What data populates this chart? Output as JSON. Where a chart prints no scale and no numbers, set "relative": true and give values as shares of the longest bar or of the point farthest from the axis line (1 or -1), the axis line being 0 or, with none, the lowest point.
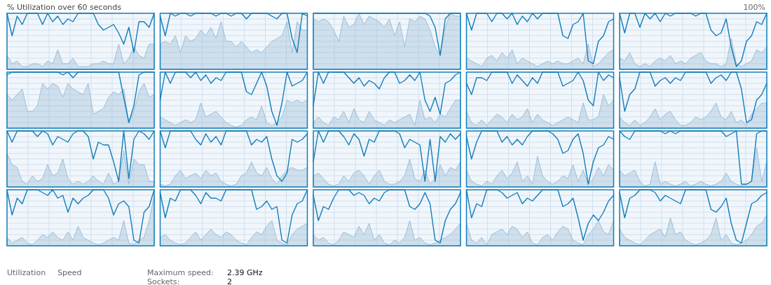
{
  "chart_data": [
    {
      "type": "line",
      "title": "% Utilization over 60 seconds",
      "annotations": [
        "100%",
        "Utilization",
        "Speed",
        "Maximum speed:",
        "2.39 GHz",
        "Sockets:",
        "2"
      ],
      "relative": true,
      "grid": true,
      "categories": [
        null,
        null,
        null,
        null,
        null,
        null,
        null,
        null,
        null,
        null,
        null,
        null,
        null,
        null,
        null,
        null,
        null,
        null,
        null,
        null,
        null,
        null,
        null,
        null,
        null,
        null,
        null,
        null,
        null,
        null
      ],
      "series": [
        {
          "color": "#117dbb",
          "values": [
            1,
            0.6,
            0.95,
            0.8,
            1,
            1,
            1,
            0.8,
            1,
            0.85,
            0.95,
            0.8,
            0.9,
            0.85,
            1,
            1,
            1,
            1,
            0.8,
            0.7,
            0.75,
            0.8,
            0.65,
            0.45,
            0.75,
            0.3,
            0.85,
            0.85,
            0.75,
            1
          ]
        },
        {
          "type": "area",
          "color": "#8fb4d1",
          "values": [
            0.25,
            0.1,
            0.15,
            0.05,
            0.05,
            0.1,
            0.1,
            0.05,
            0.15,
            0.1,
            0.35,
            0.1,
            0.1,
            0.2,
            0.05,
            0.05,
            0.05,
            0.1,
            0.1,
            0.15,
            0.1,
            0.1,
            0.45,
            0.1,
            0.2,
            0.4,
            0.25,
            0.2,
            0.45,
            0.45
          ]
        }
      ]
    },
    {
      "type": "line",
      "relative": true,
      "grid": true,
      "categories": [
        null,
        null,
        null,
        null,
        null,
        null,
        null,
        null,
        null,
        null,
        null,
        null,
        null,
        null,
        null,
        null,
        null,
        null,
        null,
        null,
        null,
        null,
        null,
        null,
        null,
        null,
        null,
        null,
        null,
        null
      ],
      "series": [
        {
          "color": "#117dbb",
          "values": [
            0.95,
            0.6,
            1,
            0.95,
            1,
            1,
            0.95,
            1,
            1,
            1,
            1,
            0.95,
            1,
            1,
            0.95,
            1,
            1,
            0.9,
            1,
            1,
            1,
            1,
            0.95,
            0.9,
            1,
            1,
            0.55,
            0.3,
            1,
            0.95
          ]
        },
        {
          "type": "area",
          "color": "#8fb4d1",
          "values": [
            0.45,
            0.5,
            0.45,
            0.6,
            0.3,
            0.6,
            0.5,
            0.55,
            0.7,
            0.6,
            0.75,
            0.55,
            0.85,
            0.5,
            0.5,
            0.4,
            0.5,
            0.4,
            0.3,
            0.35,
            0.3,
            0.4,
            0.5,
            0.55,
            0.6,
            0.85,
            0.3,
            0.85,
            0.7,
            0.7
          ]
        }
      ]
    },
    {
      "type": "line",
      "relative": true,
      "grid": true,
      "categories": [
        null,
        null,
        null,
        null,
        null,
        null,
        null,
        null,
        null,
        null,
        null,
        null,
        null,
        null,
        null,
        null,
        null,
        null,
        null,
        null,
        null,
        null,
        null,
        null,
        null,
        null,
        null,
        null,
        null,
        null
      ],
      "series": [
        {
          "color": "#117dbb",
          "values": [
            1,
            1,
            1,
            1,
            1,
            1,
            1,
            1,
            1,
            1,
            1,
            1,
            1,
            1,
            1,
            1,
            1,
            1,
            1,
            1,
            1,
            1,
            1,
            0.95,
            0.75,
            0.25,
            0.9,
            1,
            1,
            1
          ]
        },
        {
          "type": "area",
          "color": "#8fb4d1",
          "values": [
            0.9,
            0.85,
            0.9,
            0.85,
            0.7,
            0.5,
            0.95,
            0.75,
            0.8,
            1,
            0.8,
            0.95,
            0.9,
            0.85,
            0.75,
            0.9,
            0.6,
            0.85,
            0.4,
            0.9,
            0.85,
            0.95,
            0.9,
            0.7,
            0.4,
            0.25,
            0.75,
            1,
            0.95,
            0.95
          ]
        }
      ]
    },
    {
      "type": "line",
      "relative": true,
      "grid": true,
      "categories": [
        null,
        null,
        null,
        null,
        null,
        null,
        null,
        null,
        null,
        null,
        null,
        null,
        null,
        null,
        null,
        null,
        null,
        null,
        null,
        null,
        null,
        null,
        null,
        null,
        null,
        null,
        null,
        null,
        null,
        null
      ],
      "series": [
        {
          "color": "#117dbb",
          "values": [
            1,
            0.7,
            1,
            1,
            1,
            0.85,
            1,
            1,
            0.9,
            1,
            0.8,
            0.95,
            0.85,
            1,
            0.9,
            1,
            1,
            1,
            1,
            0.6,
            0.55,
            0.8,
            0.85,
            1,
            0.15,
            0.1,
            0.5,
            0.6,
            0.85,
            0.9
          ]
        },
        {
          "type": "area",
          "color": "#8fb4d1",
          "values": [
            0.2,
            0.15,
            0.1,
            0.05,
            0.2,
            0.25,
            0.15,
            0.3,
            0.2,
            0.35,
            0.1,
            0.2,
            0.15,
            0.1,
            0.05,
            0.1,
            0.15,
            0.1,
            0.15,
            0.1,
            0.1,
            0.15,
            0.2,
            0.1,
            0.45,
            0.05,
            0.1,
            0.2,
            0.3,
            0.35
          ]
        }
      ]
    },
    {
      "type": "line",
      "relative": true,
      "grid": true,
      "categories": [
        null,
        null,
        null,
        null,
        null,
        null,
        null,
        null,
        null,
        null,
        null,
        null,
        null,
        null,
        null,
        null,
        null,
        null,
        null,
        null,
        null,
        null,
        null,
        null,
        null,
        null,
        null,
        null,
        null,
        null
      ],
      "series": [
        {
          "color": "#117dbb",
          "values": [
            1,
            0.65,
            1,
            1,
            0.75,
            1,
            0.9,
            1,
            0.85,
            1,
            0.95,
            1,
            1,
            1,
            1,
            0.95,
            1,
            1,
            0.7,
            0.6,
            0.65,
            0.9,
            0.4,
            0.05,
            0.15,
            0.5,
            0.6,
            0.85,
            0.8,
            1
          ]
        },
        {
          "type": "area",
          "color": "#8fb4d1",
          "values": [
            0.2,
            0.15,
            0.3,
            0.1,
            0.05,
            0.1,
            0.05,
            0.15,
            0.2,
            0.15,
            0.25,
            0.1,
            0.15,
            0.1,
            0.2,
            0.25,
            0.3,
            0.15,
            0.1,
            0.1,
            0.05,
            0.1,
            0.55,
            0.1,
            0.05,
            0.1,
            0.15,
            0.35,
            0.3,
            0.4
          ]
        }
      ]
    },
    {
      "type": "line",
      "relative": true,
      "grid": true,
      "categories": [
        null,
        null,
        null,
        null,
        null,
        null,
        null,
        null,
        null,
        null,
        null,
        null,
        null,
        null,
        null,
        null,
        null,
        null,
        null,
        null,
        null,
        null,
        null,
        null,
        null,
        null,
        null,
        null,
        null,
        null
      ],
      "series": [
        {
          "color": "#117dbb",
          "values": [
            0.95,
            1,
            1,
            1,
            1,
            1,
            1,
            1,
            1,
            1,
            1,
            0.95,
            1,
            0.9,
            1,
            1,
            1,
            1,
            1,
            1,
            1,
            1,
            1,
            0.55,
            0.1,
            0.4,
            0.95,
            1,
            1,
            1
          ]
        },
        {
          "type": "area",
          "color": "#8fb4d1",
          "values": [
            0.6,
            0.5,
            0.6,
            0.7,
            0.3,
            0.3,
            0.4,
            0.8,
            0.7,
            0.8,
            0.75,
            0.55,
            0.8,
            0.7,
            0.65,
            0.6,
            0.8,
            0.25,
            0.3,
            0.35,
            0.55,
            0.65,
            0.6,
            0.7,
            0.1,
            0.3,
            0.65,
            0.8,
            0.55,
            0.6
          ]
        }
      ]
    },
    {
      "type": "line",
      "relative": true,
      "grid": true,
      "categories": [
        null,
        null,
        null,
        null,
        null,
        null,
        null,
        null,
        null,
        null,
        null,
        null,
        null,
        null,
        null,
        null,
        null,
        null,
        null,
        null,
        null,
        null,
        null,
        null,
        null,
        null,
        null,
        null,
        null,
        null
      ],
      "series": [
        {
          "color": "#117dbb",
          "values": [
            0.5,
            1,
            0.8,
            1,
            1,
            1,
            0.9,
            1,
            0.85,
            0.95,
            0.8,
            0.9,
            0.85,
            1,
            1,
            1,
            1,
            0.65,
            0.6,
            0.8,
            1,
            0.75,
            0.3,
            0.05,
            0.45,
            1,
            0.75,
            0.8,
            0.85,
            1
          ]
        },
        {
          "type": "area",
          "color": "#8fb4d1",
          "values": [
            0.2,
            0.15,
            0.1,
            0.05,
            0.1,
            0.15,
            0.1,
            0.15,
            0.45,
            0.2,
            0.25,
            0.3,
            0.2,
            0.1,
            0.05,
            0.02,
            0.05,
            0.15,
            0.2,
            0.15,
            0.4,
            0.1,
            0.05,
            0.1,
            0.2,
            0.5,
            0.45,
            0.5,
            0.45,
            0.5
          ]
        }
      ]
    },
    {
      "type": "line",
      "relative": true,
      "grid": true,
      "categories": [
        null,
        null,
        null,
        null,
        null,
        null,
        null,
        null,
        null,
        null,
        null,
        null,
        null,
        null,
        null,
        null,
        null,
        null,
        null,
        null,
        null,
        null,
        null,
        null,
        null,
        null,
        null,
        null,
        null,
        null
      ],
      "series": [
        {
          "color": "#117dbb",
          "values": [
            0.4,
            1,
            0.8,
            1,
            1,
            1,
            1,
            0.9,
            0.8,
            0.9,
            0.75,
            0.85,
            0.8,
            0.7,
            0.9,
            1,
            1,
            0.8,
            0.85,
            0.95,
            0.85,
            1,
            0.5,
            0.3,
            0.55,
            0.25,
            0.8,
            0.85,
            0.95,
            1
          ]
        },
        {
          "type": "area",
          "color": "#8fb4d1",
          "values": [
            0.1,
            0.2,
            0.1,
            0.05,
            0.2,
            0.15,
            0.3,
            0.1,
            0.35,
            0.15,
            0.1,
            0.3,
            0.15,
            0.1,
            0.05,
            0.15,
            0.1,
            0.15,
            0.2,
            0.25,
            0.05,
            0.5,
            0.15,
            0.2,
            0.1,
            0.25,
            0.2,
            0.35,
            0.5,
            0.5
          ]
        }
      ]
    },
    {
      "type": "line",
      "relative": true,
      "grid": true,
      "categories": [
        null,
        null,
        null,
        null,
        null,
        null,
        null,
        null,
        null,
        null,
        null,
        null,
        null,
        null,
        null,
        null,
        null,
        null,
        null,
        null,
        null,
        null,
        null,
        null,
        null,
        null,
        null,
        null,
        null,
        null
      ],
      "series": [
        {
          "color": "#117dbb",
          "values": [
            0.8,
            0.6,
            0.9,
            0.9,
            0.85,
            1,
            1,
            1,
            1,
            0.8,
            0.95,
            0.85,
            0.75,
            0.9,
            0.8,
            1,
            1,
            1,
            1,
            0.75,
            0.8,
            0.85,
            1,
            0.85,
            0.5,
            0.4,
            1,
            0.85,
            0.95,
            0.9
          ]
        },
        {
          "type": "area",
          "color": "#8fb4d1",
          "values": [
            0.3,
            0.1,
            0.05,
            0.15,
            0.05,
            0.15,
            0.25,
            0.2,
            0.1,
            0.25,
            0.15,
            0.2,
            0.35,
            0.1,
            0.25,
            0.15,
            0.1,
            0.05,
            0.1,
            0.15,
            0.2,
            0.15,
            0.1,
            0.45,
            0.15,
            0.15,
            0.2,
            0.6,
            0.4,
            0.5
          ]
        }
      ]
    },
    {
      "type": "line",
      "relative": true,
      "grid": true,
      "categories": [
        null,
        null,
        null,
        null,
        null,
        null,
        null,
        null,
        null,
        null,
        null,
        null,
        null,
        null,
        null,
        null,
        null,
        null,
        null,
        null,
        null,
        null,
        null,
        null,
        null,
        null,
        null,
        null,
        null,
        null
      ],
      "series": [
        {
          "color": "#117dbb",
          "values": [
            0.9,
            0.3,
            0.6,
            0.7,
            1,
            1,
            1,
            0.75,
            0.85,
            0.9,
            0.8,
            0.9,
            0.85,
            1,
            1,
            1,
            1,
            1,
            0.8,
            0.9,
            0.95,
            0.85,
            1,
            1,
            0.7,
            0.1,
            0.15,
            0.5,
            0.6,
            0.8
          ]
        },
        {
          "type": "area",
          "color": "#8fb4d1",
          "values": [
            0.2,
            0.1,
            0.05,
            0.15,
            0.05,
            0.1,
            0.2,
            0.35,
            0.15,
            0.25,
            0.3,
            0.15,
            0.05,
            0.05,
            0.1,
            0.2,
            0.15,
            0.2,
            0.3,
            0.45,
            0.2,
            0.15,
            0.3,
            0.1,
            0.15,
            0.05,
            0.25,
            0.35,
            0.45,
            0.45
          ]
        }
      ]
    },
    {
      "type": "line",
      "relative": true,
      "grid": true,
      "categories": [
        null,
        null,
        null,
        null,
        null,
        null,
        null,
        null,
        null,
        null,
        null,
        null,
        null,
        null,
        null,
        null,
        null,
        null,
        null,
        null,
        null,
        null,
        null,
        null,
        null,
        null,
        null,
        null,
        null,
        null
      ],
      "series": [
        {
          "color": "#117dbb",
          "values": [
            1,
            0.8,
            1,
            1,
            1,
            1,
            0.9,
            1,
            0.95,
            0.75,
            0.9,
            0.85,
            0.8,
            0.95,
            1,
            1,
            0.9,
            0.5,
            0.8,
            0.75,
            0.75,
            0.45,
            0.1,
            1,
            0.15,
            0.85,
            1,
            0.95,
            0.85,
            1
          ]
        },
        {
          "type": "area",
          "color": "#8fb4d1",
          "values": [
            0.6,
            0.4,
            0.35,
            0.1,
            0.05,
            0.2,
            0.1,
            0.15,
            0.4,
            0.2,
            0.25,
            0.5,
            0.15,
            0.05,
            0.1,
            0.05,
            0.1,
            0.2,
            0.1,
            0.05,
            0.25,
            0.05,
            0.1,
            0.65,
            0.05,
            0.5,
            0.4,
            0.4,
            0.1,
            0.1
          ]
        }
      ]
    },
    {
      "type": "line",
      "relative": true,
      "grid": true,
      "categories": [
        null,
        null,
        null,
        null,
        null,
        null,
        null,
        null,
        null,
        null,
        null,
        null,
        null,
        null,
        null,
        null,
        null,
        null,
        null,
        null,
        null,
        null,
        null,
        null,
        null,
        null,
        null,
        null,
        null,
        null
      ],
      "series": [
        {
          "color": "#117dbb",
          "values": [
            1,
            0.7,
            1,
            1,
            1,
            1,
            1,
            0.85,
            0.75,
            0.95,
            0.8,
            0.9,
            0.75,
            1,
            1,
            1,
            1,
            1,
            0.75,
            0.85,
            0.8,
            0.9,
            0.5,
            0.2,
            0.1,
            0.25,
            0.85,
            0.8,
            0.85,
            0.95
          ]
        },
        {
          "type": "area",
          "color": "#8fb4d1",
          "values": [
            0.05,
            0.02,
            0.05,
            0.2,
            0.3,
            0.15,
            0.2,
            0.25,
            0.15,
            0.3,
            0.2,
            0.25,
            0.1,
            0.05,
            0.02,
            0.05,
            0.2,
            0.25,
            0.45,
            0.25,
            0.2,
            0.35,
            0.15,
            0.05,
            0.2,
            0.3,
            0.35,
            0.3,
            0.3,
            0.35
          ]
        }
      ]
    },
    {
      "type": "line",
      "relative": true,
      "grid": true,
      "categories": [
        null,
        null,
        null,
        null,
        null,
        null,
        null,
        null,
        null,
        null,
        null,
        null,
        null,
        null,
        null,
        null,
        null,
        null,
        null,
        null,
        null,
        null,
        null,
        null,
        null,
        null,
        null,
        null,
        null,
        null
      ],
      "series": [
        {
          "color": "#117dbb",
          "values": [
            0.45,
            1,
            0.8,
            1,
            1,
            1,
            0.9,
            0.75,
            0.95,
            0.85,
            0.55,
            0.85,
            0.8,
            1,
            1,
            1,
            1,
            0.95,
            0.7,
            0.85,
            0.8,
            0.75,
            0.1,
            0.85,
            0.1,
            0.9,
            0.8,
            0.95,
            0.85,
            0.95
          ]
        },
        {
          "type": "area",
          "color": "#8fb4d1",
          "values": [
            0.2,
            0.25,
            0.15,
            0.05,
            0.02,
            0.05,
            0.2,
            0.1,
            0.25,
            0.3,
            0.2,
            0.05,
            0.2,
            0.3,
            0.1,
            0.05,
            0.05,
            0.1,
            0.2,
            0.5,
            0.15,
            0.1,
            0.3,
            0.05,
            0.15,
            0.4,
            0.2,
            0.35,
            0.3,
            0.45
          ]
        }
      ]
    },
    {
      "type": "line",
      "relative": true,
      "grid": true,
      "categories": [
        null,
        null,
        null,
        null,
        null,
        null,
        null,
        null,
        null,
        null,
        null,
        null,
        null,
        null,
        null,
        null,
        null,
        null,
        null,
        null,
        null,
        null,
        null,
        null,
        null,
        null,
        null,
        null,
        null,
        null
      ],
      "series": [
        {
          "color": "#117dbb",
          "values": [
            0.9,
            0.5,
            0.8,
            1,
            1,
            1,
            1,
            0.8,
            0.9,
            0.75,
            0.85,
            0.75,
            0.9,
            1,
            1,
            1,
            1,
            0.95,
            0.85,
            0.6,
            0.65,
            0.85,
            0.95,
            0.6,
            0.05,
            0.45,
            0.7,
            0.75,
            0.9,
            0.85
          ]
        },
        {
          "type": "area",
          "color": "#8fb4d1",
          "values": [
            0.3,
            0.1,
            0.05,
            0.02,
            0.1,
            0.05,
            0.2,
            0.3,
            0.15,
            0.25,
            0.45,
            0.1,
            0.2,
            0.05,
            0.55,
            0.2,
            0.1,
            0.05,
            0.1,
            0.2,
            0.15,
            0.4,
            0.1,
            0.3,
            0.05,
            0.15,
            0.35,
            0.2,
            0.4,
            0.3
          ]
        }
      ]
    },
    {
      "type": "line",
      "relative": true,
      "grid": true,
      "categories": [
        null,
        null,
        null,
        null,
        null,
        null,
        null,
        null,
        null,
        null,
        null,
        null,
        null,
        null,
        null,
        null,
        null,
        null,
        null,
        null,
        null,
        null,
        null,
        null,
        null,
        null,
        null,
        null,
        null,
        null
      ],
      "series": [
        {
          "color": "#117dbb",
          "values": [
            1,
            0.9,
            0.85,
            1,
            1,
            1,
            1,
            1,
            1,
            0.95,
            1,
            0.95,
            1,
            1,
            1,
            1,
            1,
            1,
            1,
            1,
            1,
            0.9,
            0.95,
            1,
            0.05,
            0.05,
            0.1,
            0.95,
            1,
            1
          ]
        },
        {
          "type": "area",
          "color": "#8fb4d1",
          "values": [
            0.3,
            0.2,
            0.25,
            0.3,
            0.1,
            0.02,
            0.05,
            0.45,
            0.05,
            0.1,
            0.05,
            0.02,
            0.05,
            0.1,
            0.02,
            0.05,
            0.1,
            0.05,
            0.02,
            0.05,
            0.1,
            0.25,
            0.1,
            0.05,
            0.02,
            0.05,
            0.1,
            0.7,
            0.1,
            0.45
          ]
        }
      ]
    },
    {
      "type": "line",
      "relative": true,
      "grid": true,
      "categories": [
        null,
        null,
        null,
        null,
        null,
        null,
        null,
        null,
        null,
        null,
        null,
        null,
        null,
        null,
        null,
        null,
        null,
        null,
        null,
        null,
        null,
        null,
        null,
        null,
        null,
        null,
        null,
        null,
        null,
        null
      ],
      "series": [
        {
          "color": "#117dbb",
          "values": [
            1,
            0.55,
            0.85,
            0.75,
            1,
            1,
            1,
            0.95,
            0.9,
            1,
            0.85,
            0.9,
            0.6,
            0.85,
            0.75,
            0.85,
            0.9,
            1,
            1,
            1,
            0.85,
            0.55,
            0.75,
            0.8,
            0.7,
            0.1,
            0.05,
            0.6,
            0.7,
            1
          ]
        },
        {
          "type": "area",
          "color": "#8fb4d1",
          "values": [
            0.15,
            0.05,
            0.1,
            0.15,
            0.05,
            0.02,
            0.1,
            0.2,
            0.15,
            0.25,
            0.15,
            0.1,
            0.25,
            0.1,
            0.35,
            0.15,
            0.1,
            0.05,
            0.02,
            0.05,
            0.1,
            0.15,
            0.1,
            0.45,
            0.05,
            0.02,
            0.1,
            0.15,
            0.45,
            0.9
          ]
        }
      ]
    },
    {
      "type": "line",
      "relative": true,
      "grid": true,
      "categories": [
        null,
        null,
        null,
        null,
        null,
        null,
        null,
        null,
        null,
        null,
        null,
        null,
        null,
        null,
        null,
        null,
        null,
        null,
        null,
        null,
        null,
        null,
        null,
        null,
        null,
        null,
        null,
        null,
        null,
        null
      ],
      "series": [
        {
          "color": "#117dbb",
          "values": [
            0.95,
            0.5,
            0.85,
            0.8,
            1,
            1,
            1,
            0.9,
            0.75,
            0.95,
            0.85,
            0.85,
            0.8,
            1,
            1,
            1,
            1,
            1,
            1,
            0.65,
            0.7,
            0.8,
            0.65,
            0.7,
            0.1,
            0.05,
            0.55,
            0.75,
            0.8,
            1
          ]
        },
        {
          "type": "area",
          "color": "#8fb4d1",
          "values": [
            0.15,
            0.2,
            0.1,
            0.05,
            0.02,
            0.05,
            0.15,
            0.25,
            0.1,
            0.2,
            0.3,
            0.2,
            0.15,
            0.25,
            0.2,
            0.1,
            0.05,
            0.02,
            0.15,
            0.25,
            0.2,
            0.35,
            0.45,
            0.1,
            0.05,
            0.02,
            0.2,
            0.3,
            0.35,
            0.4
          ]
        }
      ]
    },
    {
      "type": "line",
      "relative": true,
      "grid": true,
      "categories": [
        null,
        null,
        null,
        null,
        null,
        null,
        null,
        null,
        null,
        null,
        null,
        null,
        null,
        null,
        null,
        null,
        null,
        null,
        null,
        null,
        null,
        null,
        null,
        null,
        null,
        null,
        null,
        null,
        null,
        null
      ],
      "series": [
        {
          "color": "#117dbb",
          "values": [
            0.9,
            0.45,
            0.7,
            0.65,
            0.85,
            1,
            1,
            1,
            0.9,
            0.95,
            0.9,
            0.75,
            0.85,
            0.8,
            0.95,
            1,
            1,
            1,
            1,
            0.7,
            0.65,
            0.75,
            0.95,
            0.75,
            0.1,
            0.05,
            0.45,
            0.65,
            0.75,
            0.95
          ]
        },
        {
          "type": "area",
          "color": "#8fb4d1",
          "values": [
            0.2,
            0.1,
            0.15,
            0.05,
            0.02,
            0.1,
            0.25,
            0.2,
            0.15,
            0.35,
            0.2,
            0.4,
            0.1,
            0.2,
            0.05,
            0.02,
            0.1,
            0.05,
            0.15,
            0.45,
            0.1,
            0.15,
            0.05,
            0.02,
            0.05,
            0.1,
            0.15,
            0.2,
            0.3,
            0.4
          ]
        }
      ]
    },
    {
      "type": "line",
      "relative": true,
      "grid": true,
      "categories": [
        null,
        null,
        null,
        null,
        null,
        null,
        null,
        null,
        null,
        null,
        null,
        null,
        null,
        null,
        null,
        null,
        null,
        null,
        null,
        null,
        null,
        null,
        null,
        null,
        null,
        null,
        null,
        null,
        null,
        null
      ],
      "series": [
        {
          "color": "#117dbb",
          "values": [
            1,
            0.5,
            0.75,
            0.7,
            1,
            1,
            1,
            0.95,
            0.85,
            0.9,
            0.95,
            0.75,
            0.85,
            0.8,
            0.9,
            1,
            1,
            1,
            1,
            0.7,
            0.75,
            0.85,
            0.5,
            0.1,
            0.4,
            0.55,
            0.45,
            0.6,
            0.8,
            0.9
          ]
        },
        {
          "type": "area",
          "color": "#8fb4d1",
          "values": [
            0.4,
            0.1,
            0.05,
            0.15,
            0.02,
            0.2,
            0.25,
            0.3,
            0.2,
            0.35,
            0.3,
            0.15,
            0.25,
            0.05,
            0.02,
            0.15,
            0.2,
            0.1,
            0.25,
            0.35,
            0.3,
            0.1,
            0.05,
            0.02,
            0.2,
            0.3,
            0.45,
            0.25,
            0.2,
            0.45
          ]
        }
      ]
    },
    {
      "type": "line",
      "relative": true,
      "grid": true,
      "categories": [
        null,
        null,
        null,
        null,
        null,
        null,
        null,
        null,
        null,
        null,
        null,
        null,
        null,
        null,
        null,
        null,
        null,
        null,
        null,
        null,
        null,
        null,
        null,
        null,
        null,
        null,
        null,
        null,
        null,
        null
      ],
      "series": [
        {
          "color": "#117dbb",
          "values": [
            0.95,
            0.5,
            0.85,
            0.9,
            1,
            1,
            1,
            0.95,
            0.8,
            0.9,
            0.85,
            0.8,
            0.75,
            1,
            1,
            1,
            1,
            1,
            0.65,
            0.6,
            0.7,
            0.85,
            0.4,
            0.1,
            0.05,
            0.4,
            0.75,
            0.8,
            0.9,
            0.95
          ]
        },
        {
          "type": "area",
          "color": "#8fb4d1",
          "values": [
            0.3,
            0.15,
            0.1,
            0.05,
            0.02,
            0.1,
            0.2,
            0.25,
            0.3,
            0.15,
            0.5,
            0.2,
            0.25,
            0.1,
            0.05,
            0.02,
            0.05,
            0.1,
            0.2,
            0.5,
            0.1,
            0.2,
            0.05,
            0.02,
            0.05,
            0.1,
            0.2,
            0.35,
            0.4,
            0.55
          ]
        }
      ]
    }
  ]
}
